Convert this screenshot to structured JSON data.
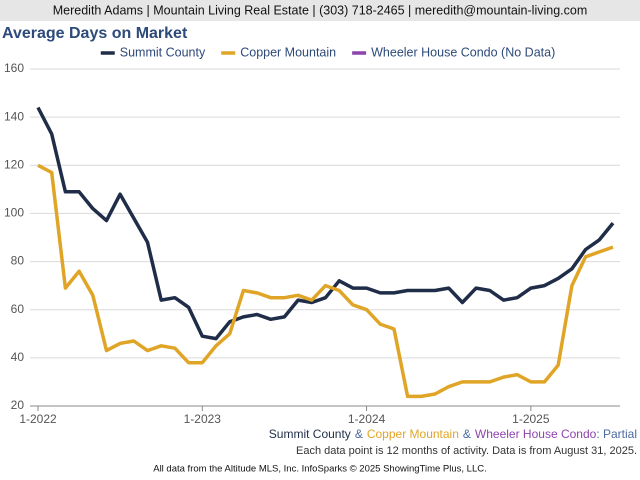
{
  "header": "Meredith Adams | Mountain Living Real Estate | (303) 718-2465 | meredith@mountain-living.com",
  "chart_data": {
    "type": "line",
    "title": "Average Days on Market",
    "categories": [
      "1-2022",
      null,
      null,
      null,
      null,
      null,
      null,
      null,
      null,
      null,
      null,
      null,
      "1-2023",
      null,
      null,
      null,
      null,
      null,
      null,
      null,
      null,
      null,
      null,
      null,
      "1-2024",
      null,
      null,
      null,
      null,
      null,
      null,
      null,
      null,
      null,
      null,
      null,
      "1-2025",
      null,
      null,
      null,
      null,
      null,
      null
    ],
    "series": [
      {
        "name": "Summit County",
        "color": "#1f2d48",
        "values": [
          144,
          133,
          109,
          109,
          102,
          97,
          108,
          98,
          88,
          64,
          65,
          61,
          49,
          48,
          55,
          57,
          58,
          56,
          57,
          64,
          63,
          65,
          72,
          69,
          69,
          67,
          67,
          68,
          68,
          68,
          69,
          63,
          69,
          68,
          64,
          65,
          69,
          70,
          73,
          77,
          85,
          89,
          96
        ]
      },
      {
        "name": "Copper Mountain",
        "color": "#e0a526",
        "values": [
          120,
          117,
          69,
          76,
          66,
          43,
          46,
          47,
          43,
          45,
          44,
          38,
          38,
          45,
          50,
          68,
          67,
          65,
          65,
          66,
          64,
          70,
          68,
          62,
          60,
          54,
          52,
          24,
          24,
          25,
          28,
          30,
          30,
          30,
          32,
          33,
          30,
          30,
          37,
          70,
          82,
          84,
          86
        ]
      },
      {
        "name": "Wheeler House Condo (No Data)",
        "color": "#8e44ad",
        "values": [
          null,
          null,
          null,
          null,
          null,
          null,
          null,
          null,
          null,
          null,
          null,
          null,
          null,
          null,
          null,
          null,
          null,
          null,
          null,
          null,
          null,
          null,
          null,
          null,
          null,
          null,
          null,
          null,
          null,
          null,
          null,
          null,
          null,
          null,
          null,
          null,
          null,
          null,
          null,
          null,
          null,
          null,
          null
        ]
      }
    ],
    "ylim": [
      20,
      160
    ],
    "yticks": [
      20,
      40,
      60,
      80,
      100,
      120,
      140,
      160
    ],
    "grid": true,
    "legend": "top",
    "caption_parts": [
      {
        "text": "Summit County",
        "color": "#1f2d48"
      },
      {
        "text": "&",
        "color": "#4a6aa0"
      },
      {
        "text": "Copper Mountain",
        "color": "#e0a526"
      },
      {
        "text": "&",
        "color": "#4a6aa0"
      },
      {
        "text": "Wheeler House Condo",
        "color": "#8e44ad"
      },
      {
        "text": ": Partial",
        "color": "#4a6aa0"
      }
    ],
    "note": "Each data point is 12 months of activity. Data is from August 31, 2025."
  },
  "footer": "All data from the Altitude MLS, Inc. InfoSparks © 2025 ShowingTime Plus, LLC."
}
